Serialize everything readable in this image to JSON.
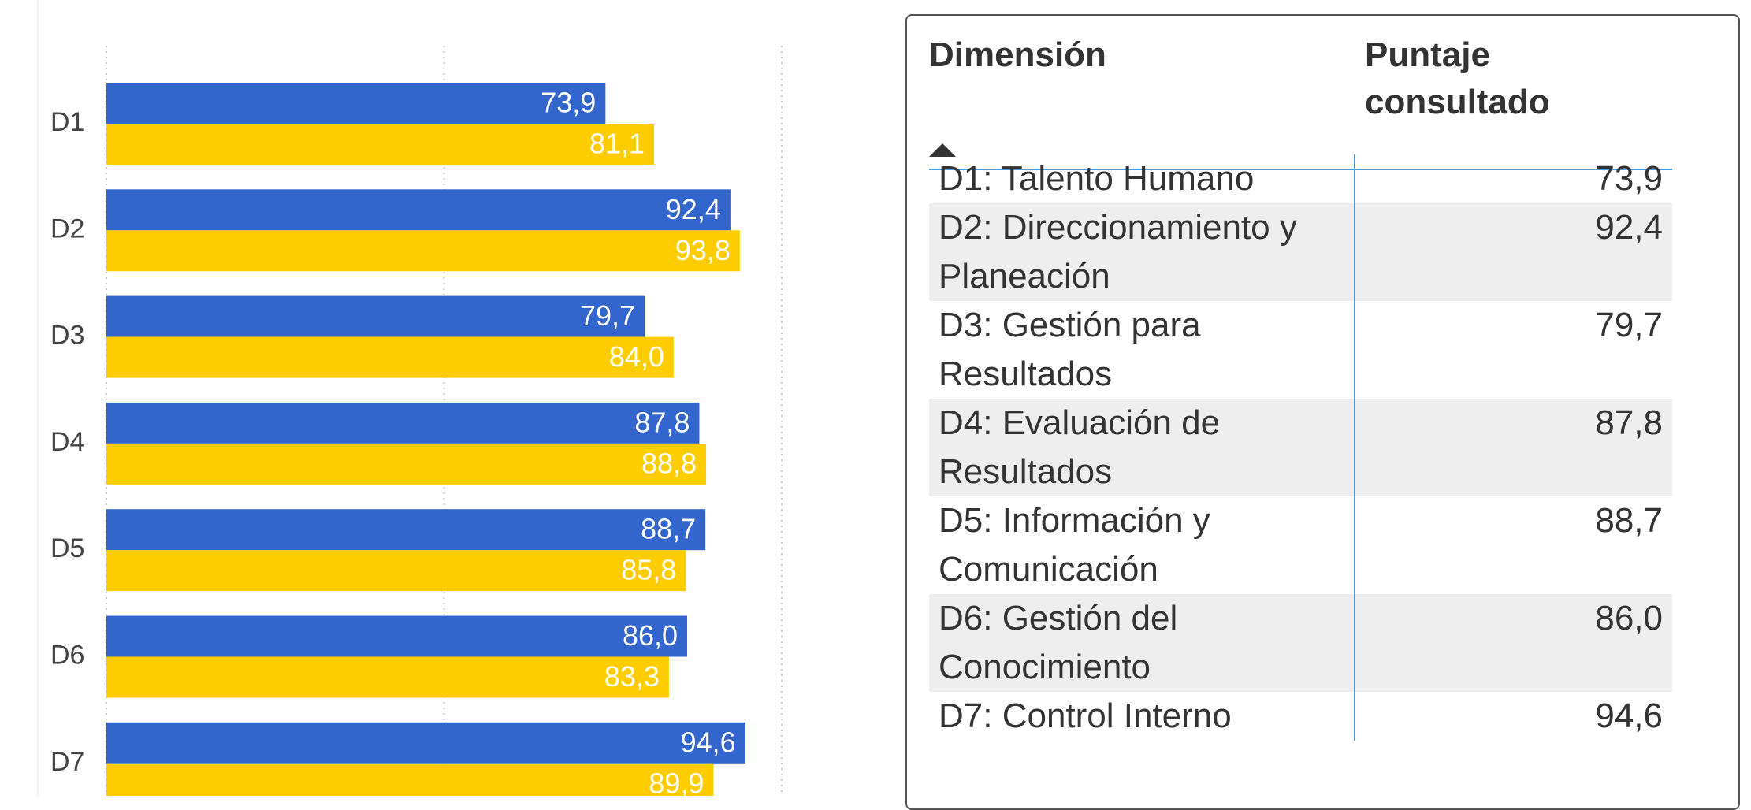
{
  "chart_data": {
    "type": "barh",
    "categories": [
      "D1",
      "D2",
      "D3",
      "D4",
      "D5",
      "D6",
      "D7"
    ],
    "series": [
      {
        "color": "#3366cc",
        "values": [
          73.9,
          92.4,
          79.7,
          87.8,
          88.7,
          86.0,
          94.6
        ],
        "value_labels": [
          "73,9",
          "92,4",
          "79,7",
          "87,8",
          "88,7",
          "86,0",
          "94,6"
        ]
      },
      {
        "color": "#ffcc00",
        "values": [
          81.1,
          93.8,
          84.0,
          88.8,
          85.8,
          83.3,
          89.9
        ],
        "value_labels": [
          "81,1",
          "93,8",
          "84,0",
          "88,8",
          "85,8",
          "83,3",
          "89,9"
        ]
      }
    ],
    "xlim": [
      0,
      100
    ],
    "xticks": [
      0,
      50,
      100
    ],
    "grid": true
  },
  "table": {
    "columns": [
      "Dimensión",
      "Puntaje consultado"
    ],
    "rows": [
      [
        "D1: Talento Humano",
        "73,9"
      ],
      [
        "D2: Direccionamiento y Planeación",
        "92,4"
      ],
      [
        "D3: Gestión para Resultados",
        "79,7"
      ],
      [
        "D4: Evaluación de Resultados",
        "87,8"
      ],
      [
        "D5: Información y Comunicación",
        "88,7"
      ],
      [
        "D6: Gestión del Conocimiento",
        "86,0"
      ],
      [
        "D7: Control Interno",
        "94,6"
      ]
    ]
  }
}
